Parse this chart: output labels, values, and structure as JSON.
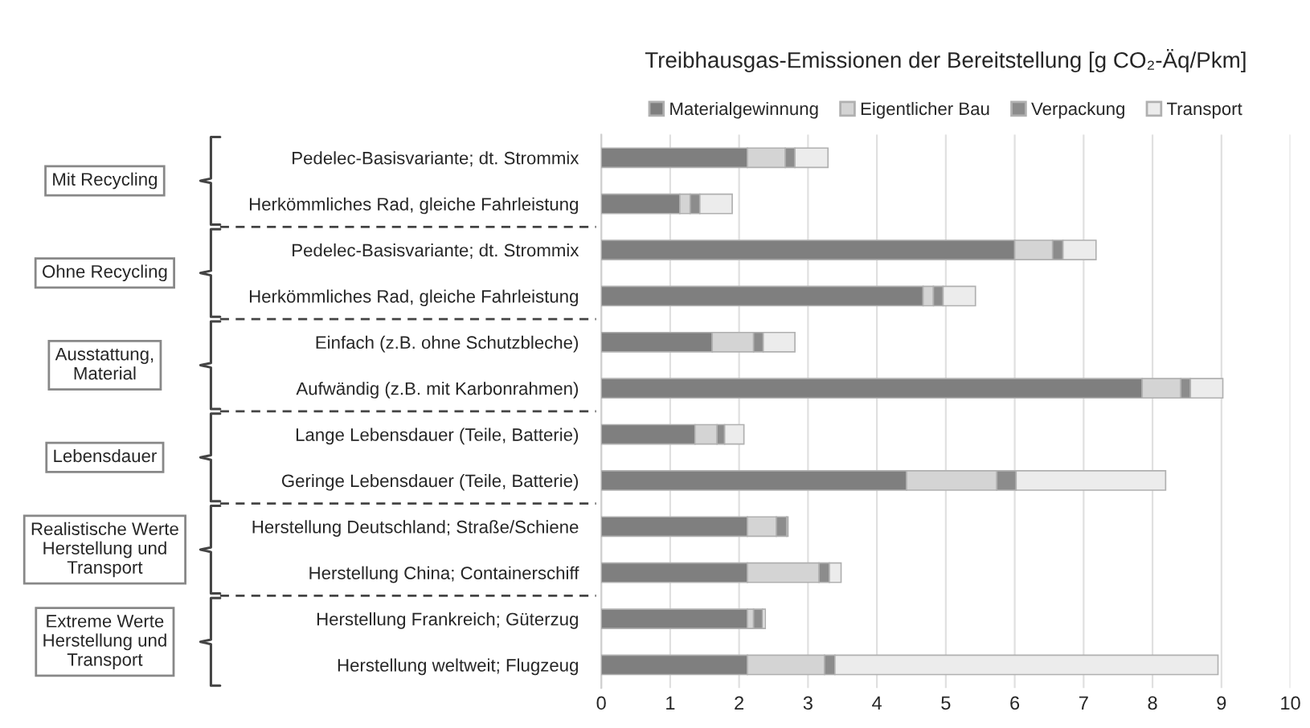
{
  "chart_data": {
    "type": "bar",
    "orientation": "horizontal",
    "stacked": true,
    "title": "Treibhausgas-Emissionen der Bereitstellung [g CO₂-Äq/Pkm]",
    "categories": [
      "Pedelec-Basisvariante; dt. Strommix",
      "Herkömmliches Rad, gleiche Fahrleistung",
      "Pedelec-Basisvariante; dt. Strommix",
      "Herkömmliches Rad, gleiche Fahrleistung",
      "Einfach (z.B. ohne Schutzbleche)",
      "Aufwändig (z.B. mit Karbonrahmen)",
      "Lange Lebensdauer (Teile, Batterie)",
      "Geringe Lebensdauer (Teile, Batterie)",
      "Herstellung Deutschland; Straße/Schiene",
      "Herstellung China; Containerschiff",
      "Herstellung Frankreich; Güterzug",
      "Herstellung weltweit; Flugzeug"
    ],
    "series": [
      {
        "name": "Materialgewinnung",
        "color": "#7f7f7f",
        "values": [
          2.12,
          1.14,
          6.0,
          4.67,
          1.61,
          7.85,
          1.36,
          4.43,
          2.12,
          2.12,
          2.12,
          2.12
        ]
      },
      {
        "name": "Eigentlicher Bau",
        "color": "#d4d4d4",
        "values": [
          0.55,
          0.15,
          0.55,
          0.15,
          0.6,
          0.56,
          0.32,
          1.31,
          0.42,
          1.04,
          0.09,
          1.12
        ]
      },
      {
        "name": "Verpackung",
        "color": "#8c8c8c",
        "values": [
          0.14,
          0.14,
          0.15,
          0.14,
          0.14,
          0.14,
          0.11,
          0.28,
          0.15,
          0.15,
          0.13,
          0.15
        ]
      },
      {
        "name": "Transport",
        "color": "#ececec",
        "values": [
          0.48,
          0.47,
          0.48,
          0.47,
          0.46,
          0.47,
          0.28,
          2.17,
          0.02,
          0.17,
          0.04,
          5.56
        ]
      }
    ],
    "annotations": [
      "Mit Recycling",
      "Ohne Recycling",
      "Ausstattung,\nMaterial",
      "Lebensdauer",
      "Realistische Werte\nHerstellung und\nTransport",
      "Extreme Werte\nHerstellung und\nTransport"
    ],
    "xlim": [
      0,
      10
    ],
    "xticks": [
      0,
      1,
      2,
      3,
      4,
      5,
      6,
      7,
      8,
      9,
      10
    ],
    "grid": "x",
    "legend": "top"
  }
}
